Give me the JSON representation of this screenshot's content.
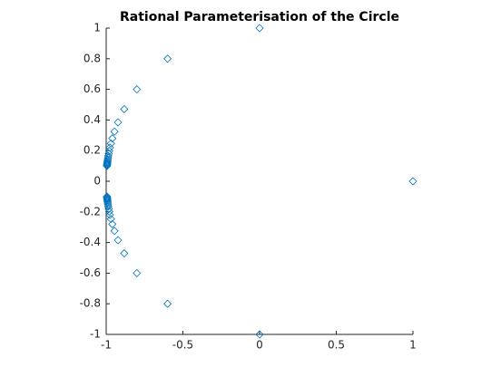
{
  "chart_data": {
    "type": "scatter",
    "title": "Rational Parameterisation of the Circle",
    "x": [
      -0.995,
      -0.9945,
      -0.9938,
      -0.9931,
      -0.9922,
      -0.9912,
      -0.9898,
      -0.9882,
      -0.9862,
      -0.9836,
      -0.9802,
      -0.9756,
      -0.9692,
      -0.96,
      -0.9459,
      -0.9231,
      -0.8824,
      -0.8,
      -0.6,
      0,
      1,
      0,
      -0.6,
      -0.8,
      -0.8824,
      -0.9231,
      -0.9459,
      -0.96,
      -0.9692,
      -0.9756,
      -0.9802,
      -0.9836,
      -0.9862,
      -0.9882,
      -0.9898,
      -0.9912,
      -0.9922,
      -0.9931,
      -0.9938,
      -0.9945,
      -0.995
    ],
    "y": [
      -0.0998,
      -0.105,
      -0.1108,
      -0.1172,
      -0.1245,
      -0.1327,
      -0.1421,
      -0.1529,
      -0.1655,
      -0.1803,
      -0.198,
      -0.2195,
      -0.2462,
      -0.28,
      -0.3243,
      -0.3846,
      -0.4706,
      -0.6,
      -0.8,
      -1,
      0,
      1,
      0.8,
      0.6,
      0.4706,
      0.3846,
      0.3243,
      0.28,
      0.2462,
      0.2195,
      0.198,
      0.1803,
      0.1655,
      0.1529,
      0.1421,
      0.1327,
      0.1245,
      0.1172,
      0.1108,
      0.105,
      0.0998
    ],
    "color": "#0072bd",
    "xlim": [
      -1,
      1
    ],
    "xticks": [
      -1,
      -0.5,
      0,
      0.5,
      1
    ],
    "ylim": [
      -1,
      1
    ],
    "yticks": [
      -1,
      -0.8,
      -0.6,
      -0.4,
      -0.2,
      0,
      0.2,
      0.4,
      0.6,
      0.8,
      1
    ]
  }
}
